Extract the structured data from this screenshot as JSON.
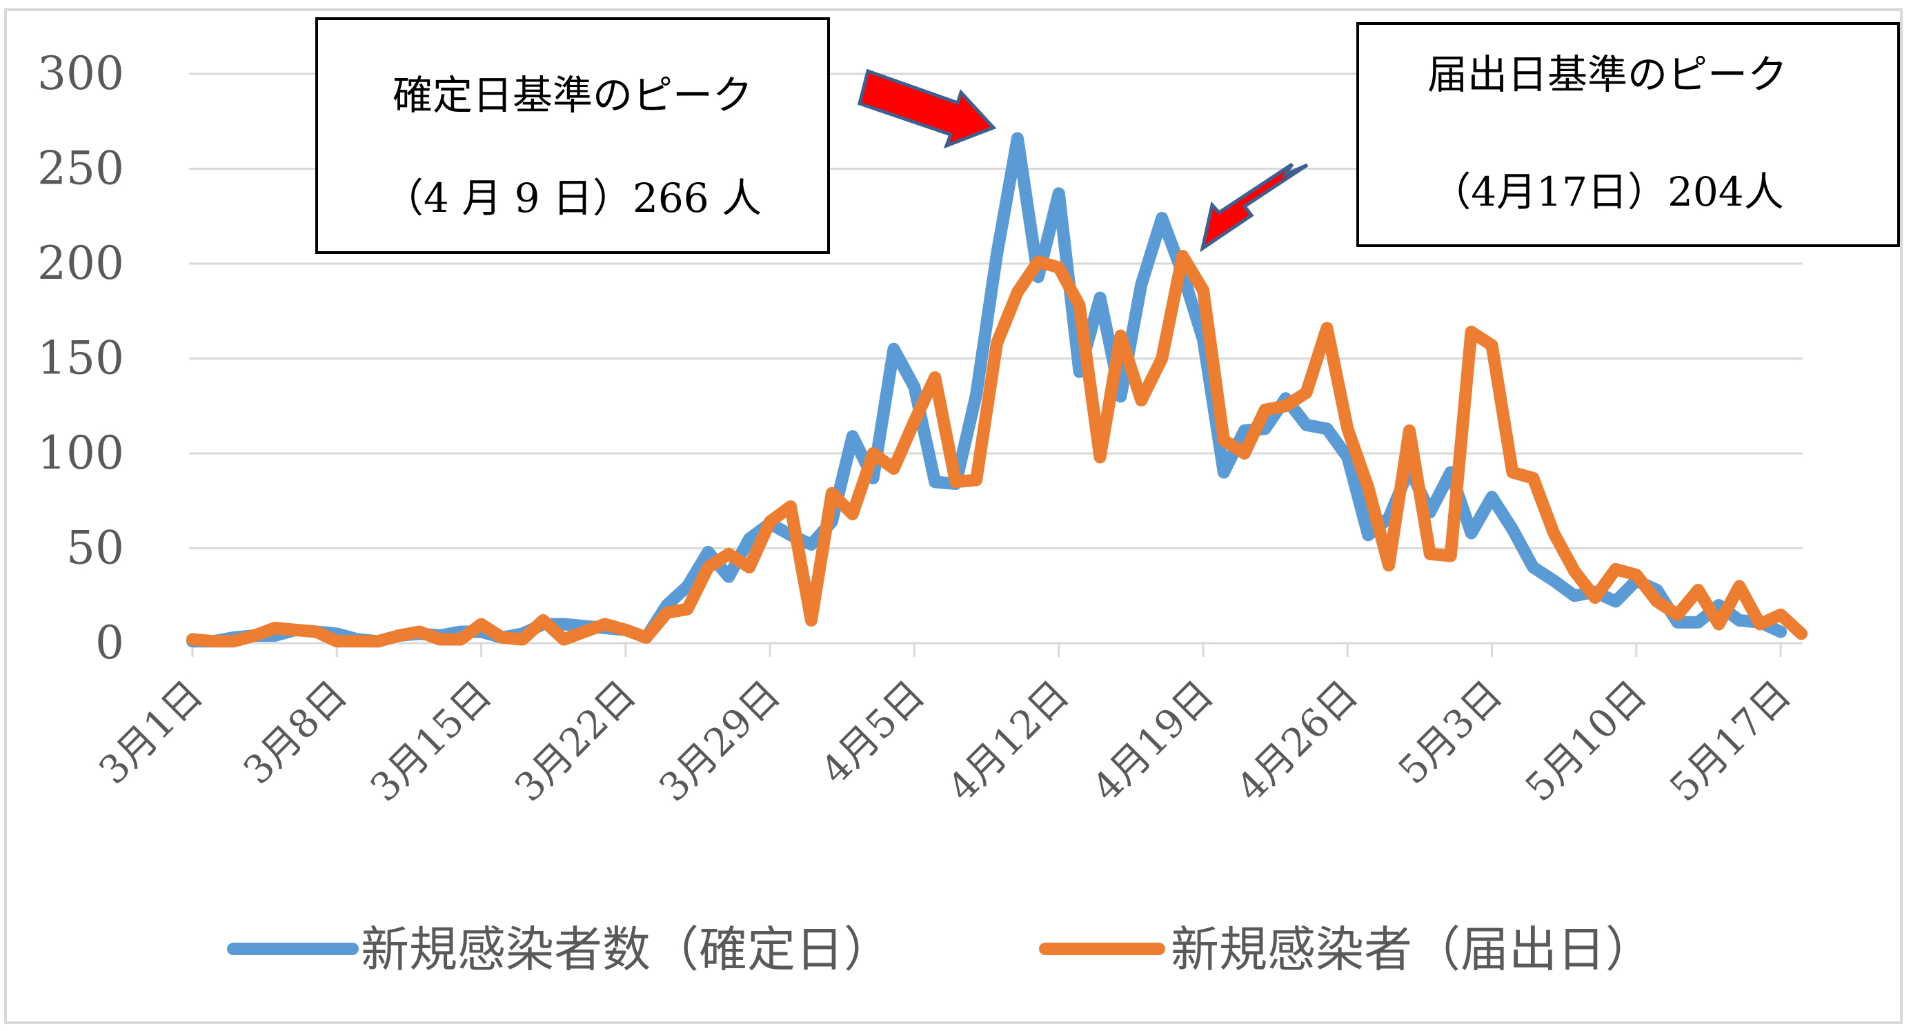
{
  "chart_data": {
    "type": "line",
    "ylim": [
      0,
      300
    ],
    "yticks": [
      0,
      50,
      100,
      150,
      200,
      250,
      300
    ],
    "grid": true,
    "legend_position": "bottom",
    "x_labels": [
      "3月1日",
      "3月8日",
      "3月15日",
      "3月22日",
      "3月29日",
      "4月5日",
      "4月12日",
      "4月19日",
      "4月26日",
      "5月3日",
      "5月10日",
      "5月17日"
    ],
    "x_label_days": [
      0,
      7,
      14,
      21,
      28,
      35,
      42,
      49,
      56,
      63,
      70,
      77
    ],
    "series": [
      {
        "name": "新規感染者数（確定日）",
        "color": "#5b9bd5",
        "values": [
          1,
          1,
          3,
          4,
          4,
          7,
          6,
          5,
          2,
          1,
          4,
          5,
          4,
          6,
          6,
          3,
          5,
          10,
          10,
          9,
          8,
          7,
          3,
          20,
          30,
          48,
          35,
          55,
          63,
          57,
          52,
          64,
          109,
          87,
          155,
          135,
          85,
          84,
          131,
          205,
          266,
          193,
          237,
          143,
          182,
          130,
          189,
          224,
          195,
          160,
          90,
          112,
          113,
          129,
          115,
          113,
          98,
          57,
          66,
          92,
          69,
          90,
          58,
          77,
          60,
          40,
          33,
          25,
          27,
          22,
          33,
          28,
          11,
          11,
          20,
          12,
          11,
          6
        ]
      },
      {
        "name": "新規感染者（届出日）",
        "color": "#ed7d31",
        "values": [
          2,
          1,
          1,
          4,
          8,
          7,
          6,
          1,
          1,
          1,
          4,
          6,
          2,
          2,
          10,
          3,
          2,
          12,
          2,
          6,
          10,
          7,
          3,
          16,
          18,
          40,
          47,
          40,
          64,
          72,
          12,
          79,
          68,
          100,
          92,
          117,
          140,
          85,
          86,
          158,
          185,
          201,
          198,
          178,
          98,
          162,
          128,
          150,
          204,
          186,
          107,
          100,
          123,
          125,
          132,
          166,
          113,
          82,
          41,
          112,
          47,
          46,
          164,
          157,
          90,
          87,
          58,
          38,
          24,
          39,
          36,
          22,
          15,
          28,
          10,
          30,
          10,
          15,
          5
        ]
      }
    ],
    "annotations": [
      {
        "line1": "確定日基準のピーク",
        "line2": "（4 月 9 日）266 人"
      },
      {
        "line1": "届出日基準のピーク",
        "line2": "（4月17日）204人"
      }
    ]
  }
}
